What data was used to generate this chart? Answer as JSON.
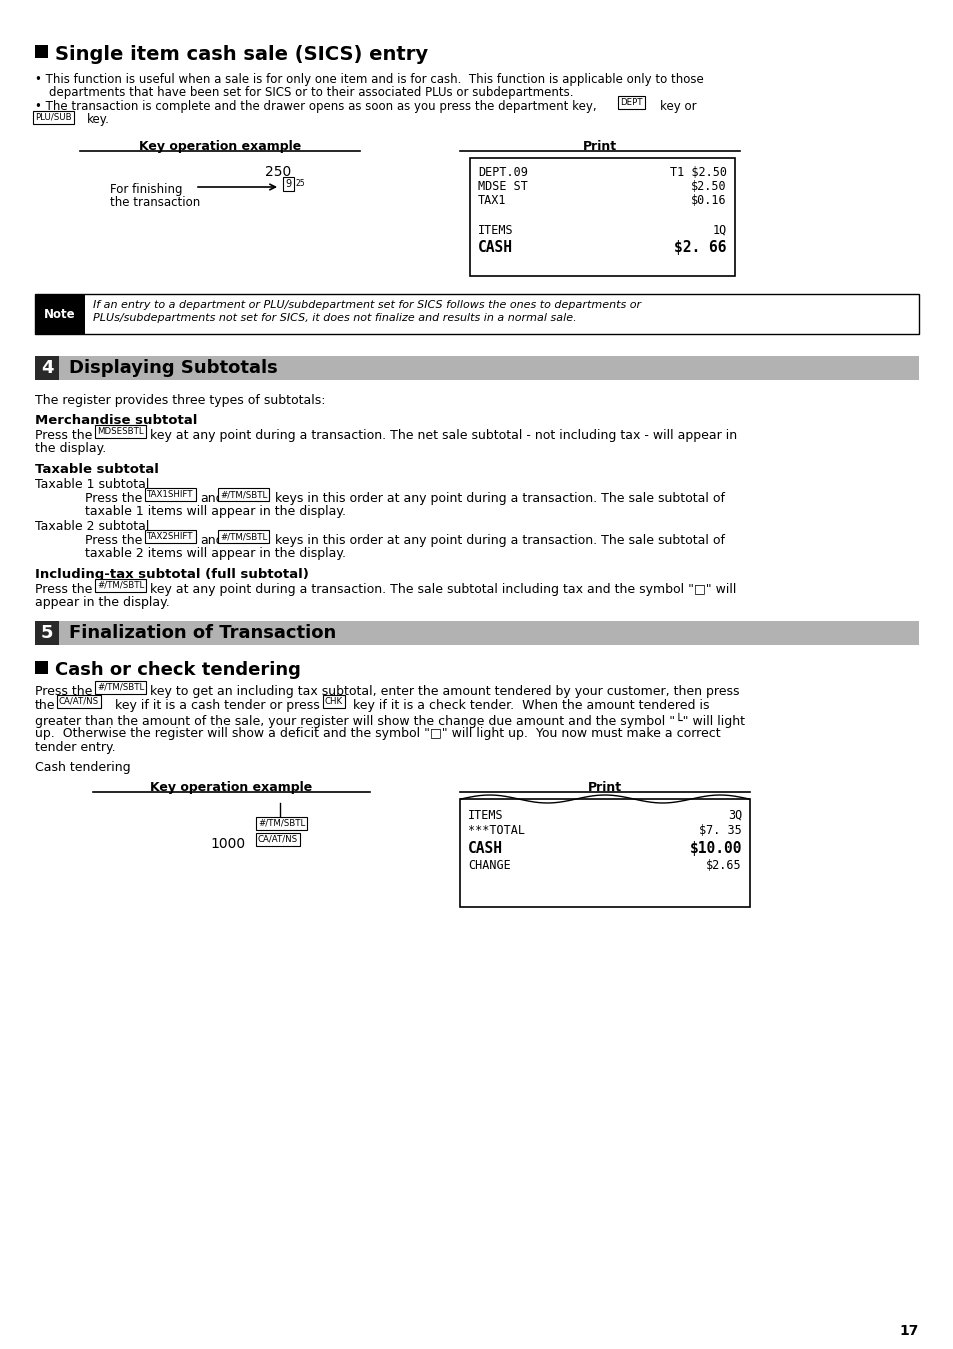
{
  "page_number": "17",
  "bg_color": "#ffffff",
  "section1_title": "Single item cash sale (SICS) entry",
  "bullet1a": "This function is useful when a sale is for only one item and is for cash.  This function is applicable only to those",
  "bullet1b": "departments that have been set for SICS or to their associated PLUs or subdepartments.",
  "bullet2a": "The transaction is complete and the drawer opens as soon as you press the department key,",
  "key_DEPT": "DEPT",
  "bullet2b": "key or",
  "key_PLUSUB": "PLU/SUB",
  "bullet2c": "key.",
  "key_operation_label": "Key operation example",
  "print_label": "Print",
  "sics_value": "250",
  "for_finishing": "For finishing",
  "the_transaction": "the transaction",
  "receipt1_lines": [
    [
      "DEPT.09",
      "T1 $2.50"
    ],
    [
      "MDSE ST",
      "$2.50"
    ],
    [
      "TAX1",
      "$0.16"
    ],
    [
      "",
      ""
    ],
    [
      "ITEMS",
      "1Q"
    ],
    [
      "CASH",
      "$2. 66"
    ]
  ],
  "receipt1_bold": [
    false,
    false,
    false,
    false,
    false,
    true
  ],
  "note_text1": "If an entry to a department or PLU/subdepartment set for SICS follows the ones to departments or",
  "note_text2": "PLUs/subdepartments not set for SICS, it does not finalize and results in a normal sale.",
  "section4_num": "4",
  "section4_title": "Displaying Subtotals",
  "section4_bg": "#b2b2b2",
  "section4_body": "The register provides three types of subtotals:",
  "merch_heading": "Merchandise subtotal",
  "merch_key": "MDSESBTL",
  "merch_body": "key at any point during a transaction. The net sale subtotal - not including tax - will appear in",
  "merch_body2": "the display.",
  "taxable_heading": "Taxable subtotal",
  "taxable1_label": "Taxable 1 subtotal",
  "taxable1_key1": "TAX1SHIFT",
  "taxable1_key2": "#/TM/SBTL",
  "taxable1_body": "keys in this order at any point during a transaction. The sale subtotal of",
  "taxable1_body2": "taxable 1 items will appear in the display.",
  "taxable2_label": "Taxable 2 subtotal",
  "taxable2_key1": "TAX2SHIFT",
  "taxable2_key2": "#/TM/SBTL",
  "taxable2_body": "keys in this order at any point during a transaction. The sale subtotal of",
  "taxable2_body2": "taxable 2 items will appear in the display.",
  "incltax_heading": "Including-tax subtotal (full subtotal)",
  "incltax_key": "#/TM/SBTL",
  "incltax_body": "key at any point during a transaction. The sale subtotal including tax and the symbol \"□\" will",
  "incltax_body2": "appear in the display.",
  "section5_num": "5",
  "section5_title": "Finalization of Transaction",
  "section5_bg": "#b2b2b2",
  "cash_heading": "Cash or check tendering",
  "cash_key1": "#/TM/SBTL",
  "cash_p1b": "key to get an including tax subtotal, enter the amount tendered by your customer, then press",
  "cash_key2": "CA/AT/NS",
  "cash_p2b": "key if it is a cash tender or press the",
  "cash_key3": "CHK",
  "cash_p2c": "key if it is a check tender.  When the amount tendered is",
  "cash_p3": "greater than the amount of the sale, your register will show the change due amount and the symbol \"└\" will light",
  "cash_p4": "up.  Otherwise the register will show a deficit and the symbol \"□\" will light up.  You now must make a correct",
  "cash_p5": "tender entry.",
  "cash_tendering_label": "Cash tendering",
  "cash_value": "1000",
  "cash_key_label1": "#/TM/SBTL",
  "cash_key_label2": "CA/AT/NS",
  "receipt2_lines": [
    [
      "ITEMS",
      "3Q"
    ],
    [
      "***TOTAL",
      "$7. 35"
    ],
    [
      "CASH",
      "$10.00"
    ],
    [
      "CHANGE",
      "$2.65"
    ]
  ],
  "receipt2_bold": [
    false,
    false,
    true,
    false
  ]
}
